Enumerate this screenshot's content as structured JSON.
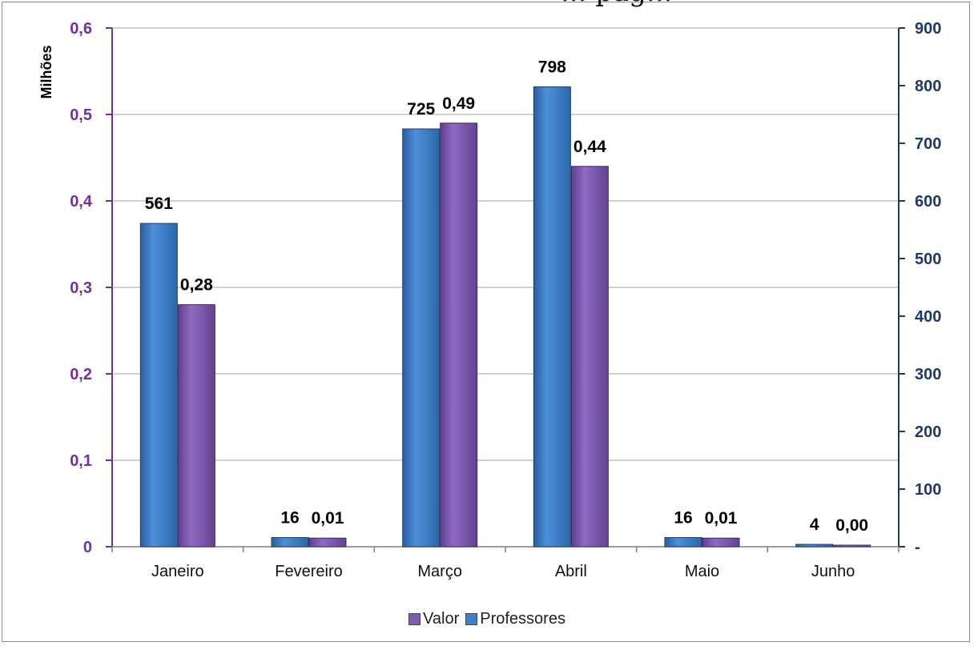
{
  "chart_data": {
    "type": "bar",
    "title": "... pag...",
    "categories": [
      "Janeiro",
      "Fevereiro",
      "Março",
      "Abril",
      "Maio",
      "Junho"
    ],
    "series": [
      {
        "name": "Professores",
        "axis": "right",
        "color": "#3f7fcc",
        "values": [
          561,
          16,
          725,
          798,
          16,
          4
        ],
        "labels": [
          "561",
          "16",
          "725",
          "798",
          "16",
          "4"
        ]
      },
      {
        "name": "Valor",
        "axis": "left",
        "color": "#7e5bb3",
        "values": [
          0.28,
          0.01,
          0.49,
          0.44,
          0.01,
          0.0
        ],
        "labels": [
          "0,28",
          "0,01",
          "0,49",
          "0,44",
          "0,01",
          "0,00"
        ]
      }
    ],
    "y_left": {
      "label": "Milhões",
      "ylim": [
        0,
        0.6
      ],
      "ticks": [
        "0",
        "0,1",
        "0,2",
        "0,3",
        "0,4",
        "0,5",
        "0,6"
      ],
      "color": "#7030a0"
    },
    "y_right": {
      "ylim": [
        0,
        900
      ],
      "ticks": [
        "-",
        "100",
        "200",
        "300",
        "400",
        "500",
        "600",
        "700",
        "800",
        "900"
      ],
      "color": "#1f3864"
    },
    "grid": true,
    "legend_position": "bottom",
    "legend_order": [
      "Valor",
      "Professores"
    ]
  }
}
